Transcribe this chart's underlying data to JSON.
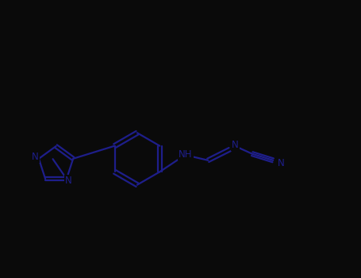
{
  "bg_color": "#0a0a0a",
  "bond_color": "#1e1e8a",
  "atom_color": "#1e1e8a",
  "bond_lw": 1.6,
  "font_size": 8.5,
  "fig_width": 4.55,
  "fig_height": 3.5,
  "dpi": 100,
  "xlim": [
    0,
    10
  ],
  "ylim": [
    0,
    7.7
  ]
}
